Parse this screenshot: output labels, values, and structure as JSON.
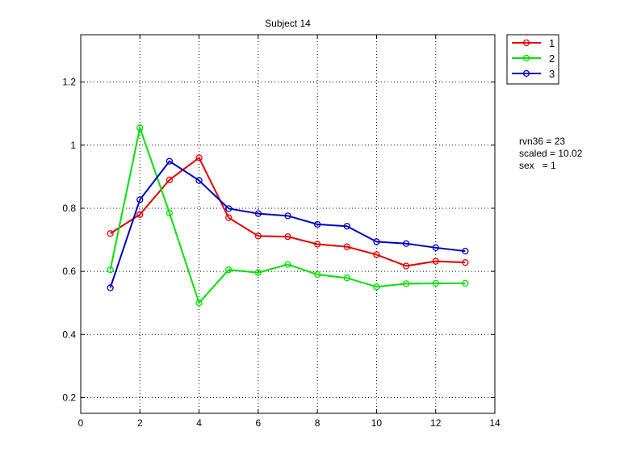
{
  "chart_data": {
    "type": "line",
    "title": "Subject 14",
    "xlabel": "",
    "ylabel": "",
    "xlim": [
      0,
      14
    ],
    "ylim": [
      0.15,
      1.35
    ],
    "xticks": [
      "0",
      "2",
      "4",
      "6",
      "8",
      "10",
      "12",
      "14"
    ],
    "yticks": [
      "0.2",
      "0.4",
      "0.6",
      "0.8",
      "1",
      "1.2"
    ],
    "grid": true,
    "legend_position": "outside-top-right",
    "x": [
      1,
      2,
      3,
      4,
      5,
      6,
      7,
      8,
      9,
      10,
      11,
      12,
      13
    ],
    "series": [
      {
        "name": "1",
        "color": "#e00000",
        "marker": "circle",
        "values": [
          0.72,
          0.78,
          0.89,
          0.96,
          0.77,
          0.712,
          0.71,
          0.686,
          0.678,
          0.653,
          0.617,
          0.632,
          0.628
        ]
      },
      {
        "name": "2",
        "color": "#00e000",
        "marker": "circle",
        "values": [
          0.605,
          1.055,
          0.785,
          0.5,
          0.605,
          0.596,
          0.622,
          0.59,
          0.579,
          0.551,
          0.561,
          0.562,
          0.562
        ]
      },
      {
        "name": "3",
        "color": "#0000c0",
        "marker": "circle",
        "values": [
          0.548,
          0.827,
          0.949,
          0.888,
          0.799,
          0.783,
          0.776,
          0.749,
          0.743,
          0.694,
          0.688,
          0.675,
          0.664
        ]
      }
    ]
  },
  "annotations": [
    "rvn36 = 23",
    "scaled = 10.02",
    "sex   = 1"
  ]
}
